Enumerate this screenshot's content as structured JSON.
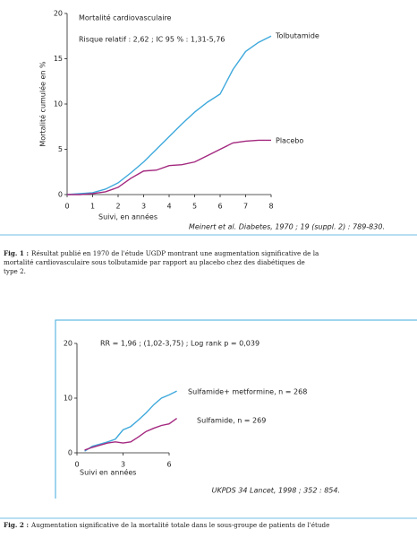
{
  "chart_data": [
    {
      "type": "line",
      "title": "Mortalité cardiovasculaire",
      "subtitle": "Risque relatif : 2,62 ; IC 95 % : 1,31-5,76",
      "y_label": "Mortalité cumulée en %",
      "x_label": "Suivi, en années",
      "x": [
        0,
        0.5,
        1,
        1.5,
        2,
        2.5,
        3,
        3.5,
        4,
        4.5,
        5,
        5.5,
        6,
        6.5,
        7,
        7.5,
        8
      ],
      "series": [
        {
          "name": "Tolbutamide",
          "color": "#3fa9dc",
          "values": [
            0,
            0.1,
            0.2,
            0.6,
            1.3,
            2.4,
            3.6,
            5.0,
            6.4,
            7.8,
            9.1,
            10.2,
            11.1,
            13.8,
            15.8,
            16.8,
            17.5
          ]
        },
        {
          "name": "Placebo",
          "color": "#a3287f",
          "values": [
            0,
            0,
            0.1,
            0.3,
            0.8,
            1.8,
            2.6,
            2.7,
            3.2,
            3.3,
            3.6,
            4.3,
            5.0,
            5.7,
            5.9,
            6.0,
            6.0
          ]
        }
      ],
      "xlim": [
        0,
        8
      ],
      "xticks": [
        0,
        1,
        2,
        3,
        4,
        5,
        6,
        7,
        8
      ],
      "ylim": [
        0,
        20
      ],
      "yticks": [
        0,
        5,
        10,
        15,
        20
      ],
      "grid": false,
      "source": "Meinert et al. Diabetes, 1970 ; 19 (suppl. 2) : 789-830."
    },
    {
      "type": "line",
      "title": "RR = 1,96 ; (1,02-3,75) ; Log rank p = 0,039",
      "x_label": "Suivi en années",
      "x": [
        0.5,
        1,
        1.5,
        2,
        2.5,
        3,
        3.5,
        4,
        4.5,
        5,
        5.5,
        6,
        6.5
      ],
      "series": [
        {
          "name": "Sulfamide+ metformine, n = 268",
          "color": "#3fa9dc",
          "values": [
            0.3,
            1.2,
            1.6,
            2.0,
            2.5,
            4.2,
            4.8,
            6.0,
            7.3,
            8.8,
            10.0,
            10.6,
            11.3
          ]
        },
        {
          "name": "Sulfamide, n = 269",
          "color": "#a3287f",
          "values": [
            0.5,
            1.0,
            1.4,
            1.8,
            2.0,
            1.8,
            2.0,
            2.9,
            3.9,
            4.5,
            5.0,
            5.3,
            6.3
          ]
        }
      ],
      "xlim": [
        0,
        6
      ],
      "xticks": [
        0,
        3,
        6
      ],
      "ylim": [
        0,
        20
      ],
      "yticks": [
        0,
        10,
        20
      ],
      "grid": false,
      "source": "UKPDS 34 Lancet, 1998 ; 352 : 854."
    }
  ],
  "captions": [
    {
      "label": "Fig. 1 :",
      "text": "Résultat publié en 1970 de l'étude UGDP montrant une augmentation significative de la mortalité cardiovasculaire sous tolbutamide par rapport au placebo chez des diabétiques de type 2."
    },
    {
      "label": "Fig. 2 :",
      "text": "Augmentation significative de la mortalité totale dans le sous-groupe de patients de l'étude"
    }
  ]
}
